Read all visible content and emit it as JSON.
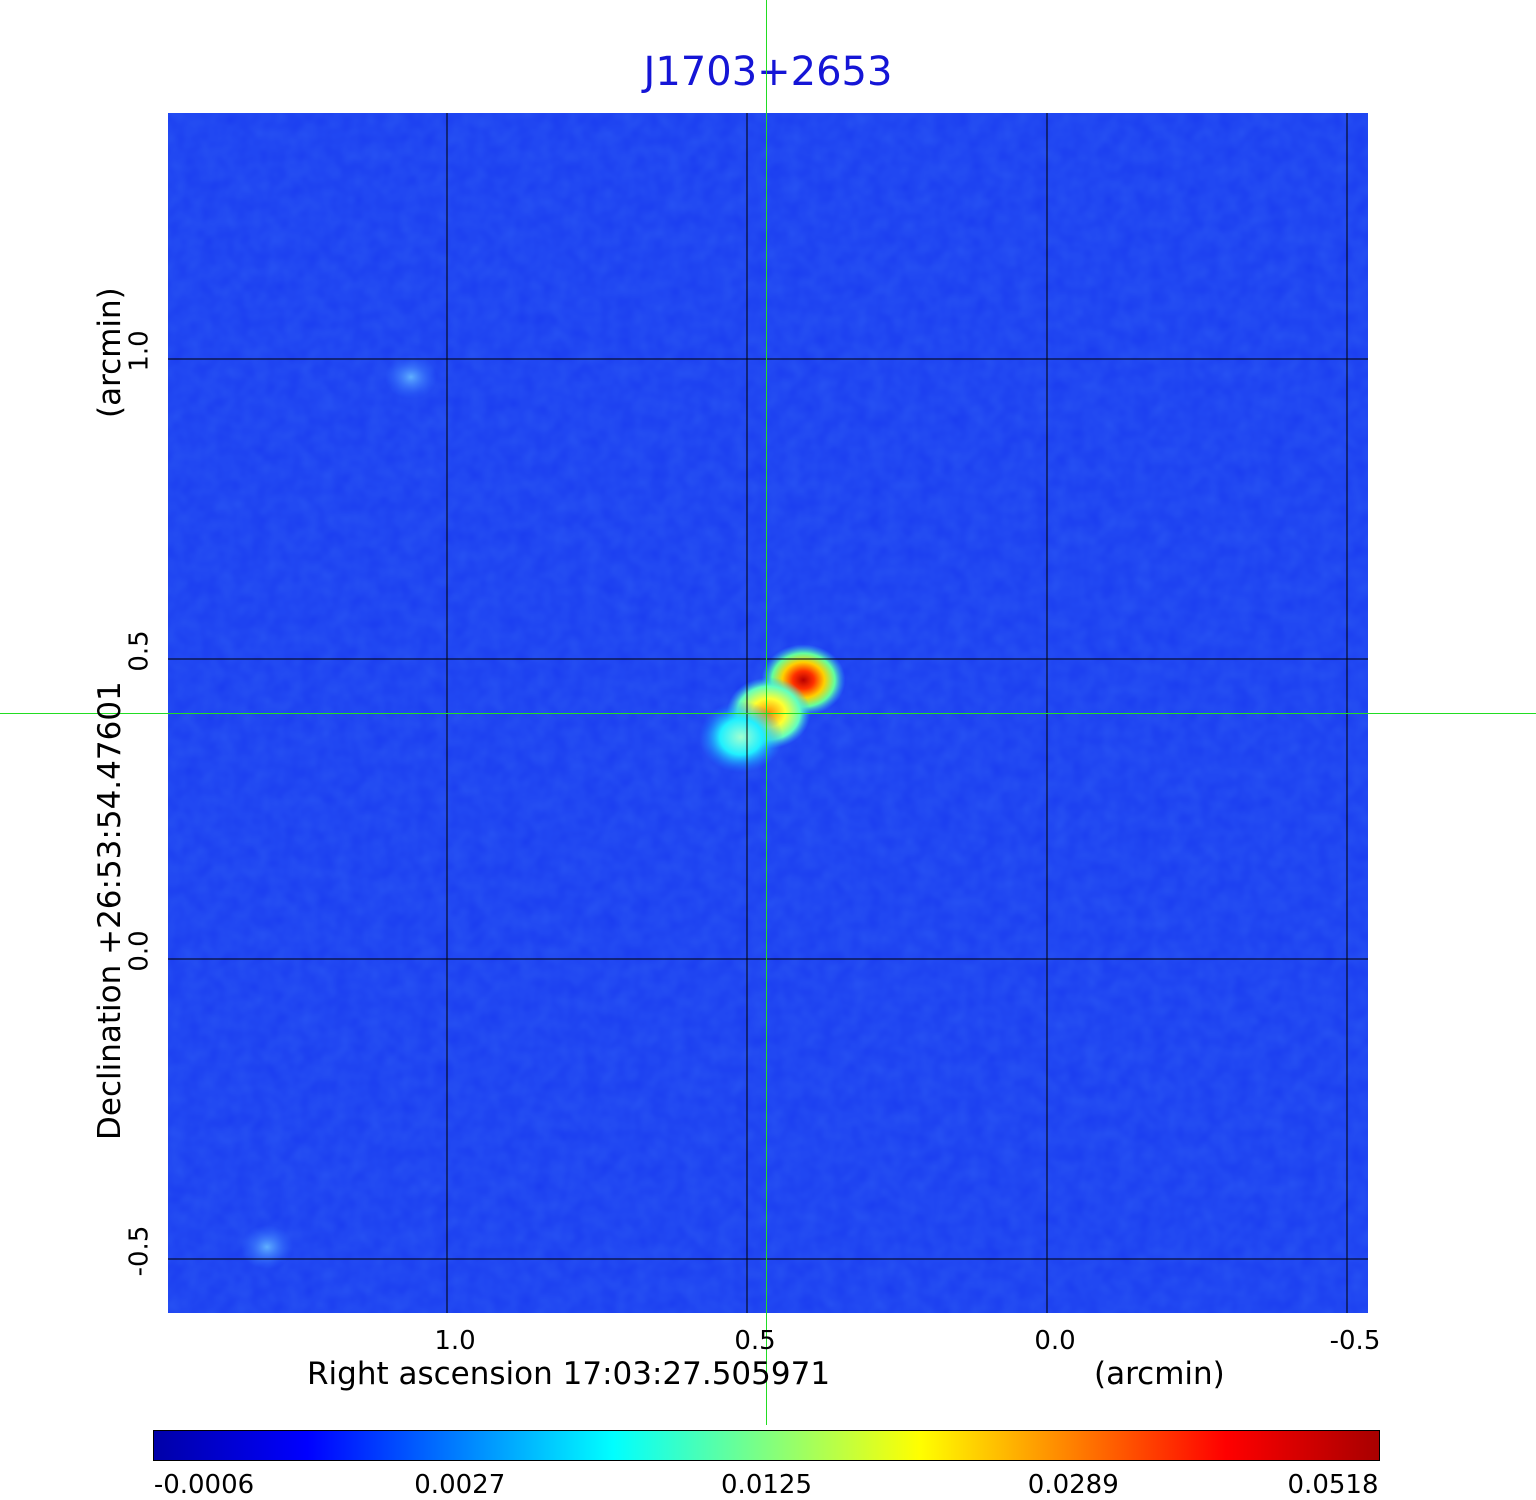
{
  "chart_data": {
    "type": "heatmap",
    "title": "J1703+2653",
    "xlabel": "Right ascension  17:03:27.505971",
    "xlabel_unit": "(arcmin)",
    "ylabel": "Declination  +26:53:54.47601",
    "ylabel_unit": "(arcmin)",
    "x_axis": {
      "range": [
        1.465,
        -0.535
      ],
      "reversed": true,
      "ticks": [
        1.0,
        0.5,
        0.0,
        -0.5
      ],
      "tick_labels": [
        "1.0",
        "0.5",
        "0.0",
        "-0.5"
      ]
    },
    "y_axis": {
      "range": [
        -0.59,
        1.41
      ],
      "ticks": [
        -0.5,
        0.0,
        0.5,
        1.0
      ],
      "tick_labels": [
        "-0.5",
        "0.0",
        "0.5",
        "1.0"
      ]
    },
    "grid": true,
    "crosshair": {
      "x": 0.467,
      "y": 0.41
    },
    "colormap": "jet",
    "colorbar": {
      "placement": "bottom",
      "ticks": [
        "-0.0006",
        "0.0027",
        "0.0125",
        "0.0289",
        "0.0518"
      ],
      "colors": [
        "#0000a8",
        "#0000ff",
        "#0080ff",
        "#00ffff",
        "#80ff80",
        "#ffff00",
        "#ff8000",
        "#ff0000",
        "#a80000"
      ]
    },
    "background_level": 0.0027,
    "sources": [
      {
        "x": 0.406,
        "y": 0.465,
        "peak": 0.0518
      },
      {
        "x": 0.464,
        "y": 0.41,
        "peak": 0.0289
      },
      {
        "x": 0.51,
        "y": 0.37,
        "peak": 0.0125
      },
      {
        "x": 1.06,
        "y": 0.97,
        "peak": 0.0045
      },
      {
        "x": 1.3,
        "y": -0.48,
        "peak": 0.0045
      }
    ]
  }
}
